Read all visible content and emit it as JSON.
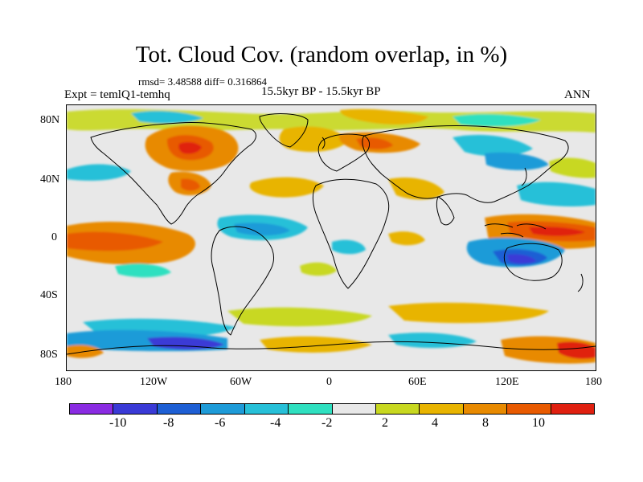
{
  "title": "Tot. Cloud Cov. (random overlap, in %)",
  "stats": "rmsd= 3.48588 diff= 0.316864",
  "expt": "Expt = temlQ1-temhq",
  "period": "15.5kyr BP - 15.5kyr BP",
  "season": "ANN",
  "lat_labels": [
    "80N",
    "40N",
    "0",
    "40S",
    "80S"
  ],
  "lon_labels": [
    "180",
    "120W",
    "60W",
    "0",
    "60E",
    "120E",
    "180"
  ],
  "colorbar": {
    "colors": [
      "#8a2be2",
      "#3a3ad6",
      "#1e5fd4",
      "#1e9bd8",
      "#27c0d8",
      "#2fe0c0",
      "#e8e8e8",
      "#c8d820",
      "#e8b400",
      "#e88a00",
      "#e85a00",
      "#e02010"
    ],
    "labels": [
      "-10",
      "-8",
      "-6",
      "-4",
      "-2",
      "2",
      "4",
      "8",
      "10"
    ]
  },
  "map_data": {
    "type": "filled-contour-map",
    "projection": "cylindrical-equidistant",
    "lon_range": [
      -180,
      180
    ],
    "lat_range": [
      -90,
      90
    ],
    "contour_levels": [
      -10,
      -8,
      -6,
      -4,
      -2,
      2,
      4,
      8,
      10
    ],
    "background_color": "#e8e8e8"
  }
}
